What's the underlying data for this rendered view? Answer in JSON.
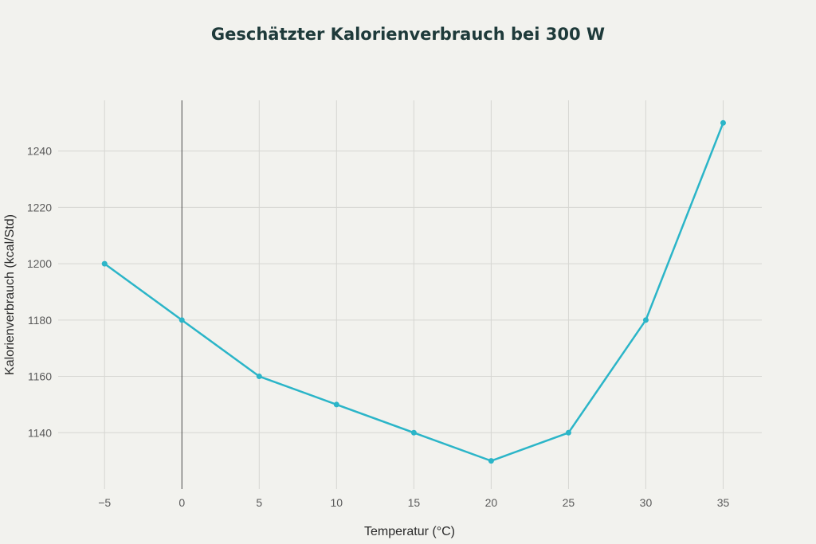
{
  "chart_data": {
    "type": "line",
    "title": "Geschätzter Kalorienverbrauch bei 300 W",
    "xlabel": "Temperatur (°C)",
    "ylabel": "Kalorienverbrauch (kcal/Std)",
    "x": [
      -5,
      0,
      5,
      10,
      15,
      20,
      25,
      30,
      35
    ],
    "series": [
      {
        "values": [
          1200,
          1180,
          1160,
          1150,
          1140,
          1130,
          1140,
          1180,
          1250
        ],
        "color": "#2bb5c8"
      }
    ],
    "x_ticks": [
      -5,
      0,
      5,
      10,
      15,
      20,
      25,
      30,
      35
    ],
    "x_tick_labels": [
      "−5",
      "0",
      "5",
      "10",
      "15",
      "20",
      "25",
      "30",
      "35"
    ],
    "y_ticks": [
      1140,
      1160,
      1180,
      1200,
      1220,
      1240
    ],
    "xlim": [
      -8,
      37.5
    ],
    "ylim": [
      1120,
      1258
    ],
    "grid": true,
    "legend": "none"
  }
}
